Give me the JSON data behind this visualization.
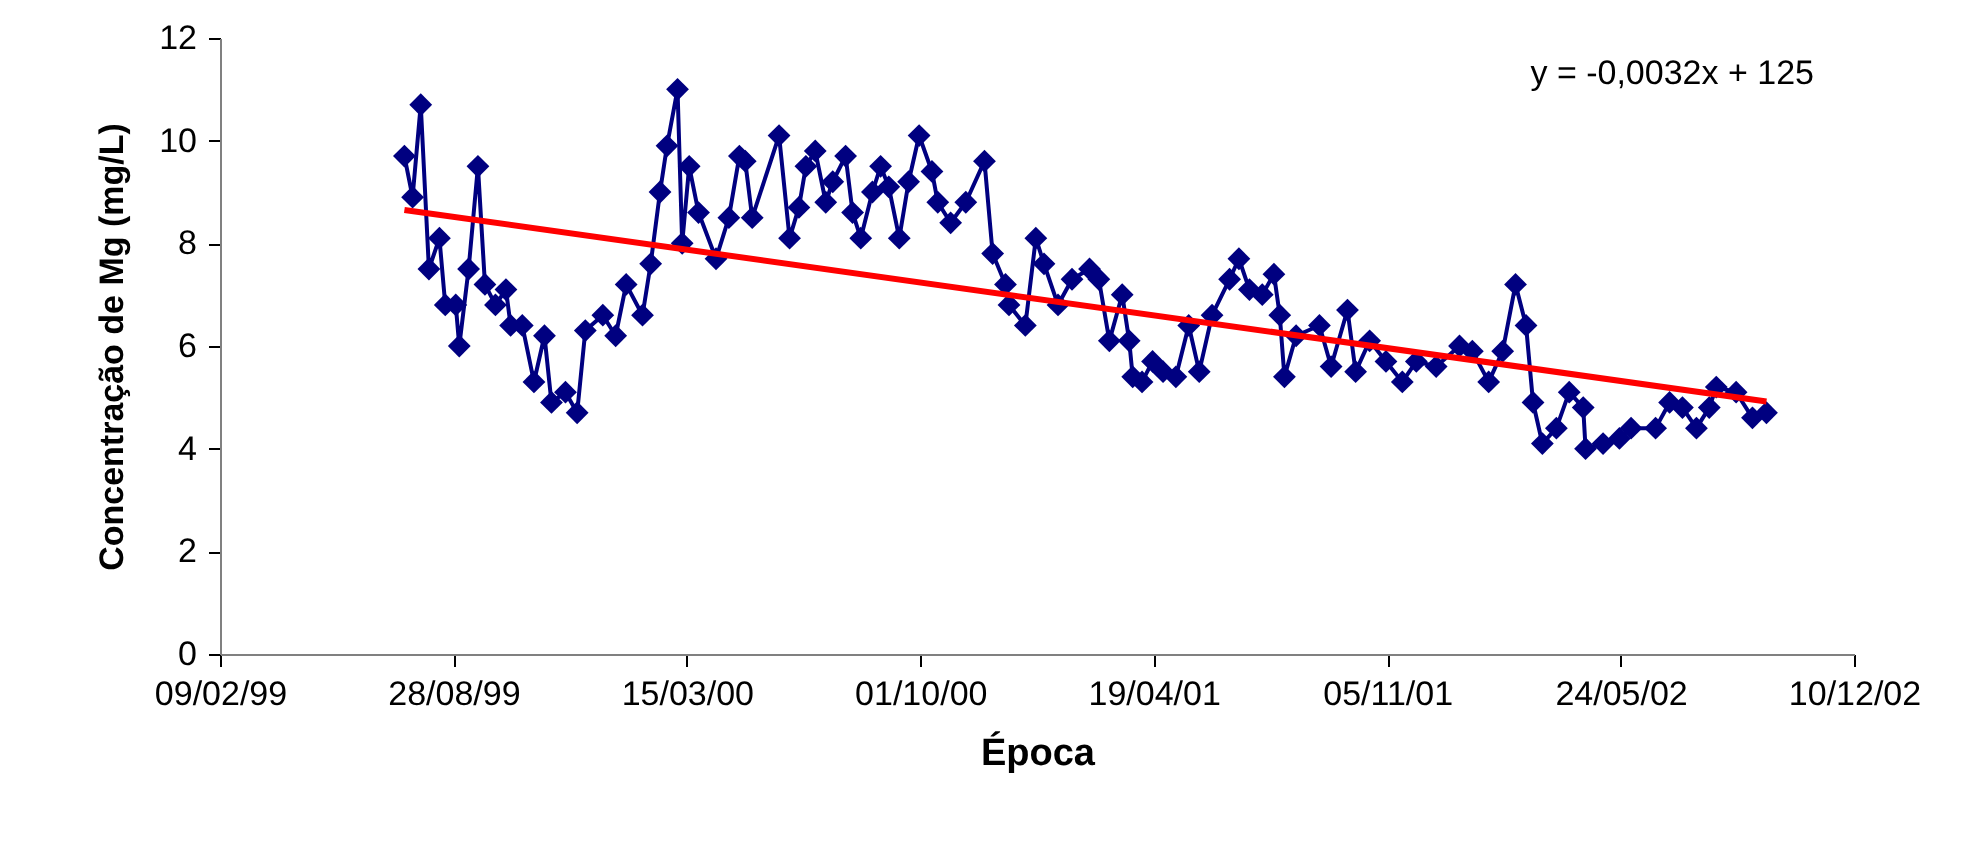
{
  "chart_data": {
    "type": "line",
    "xlabel": "Época",
    "ylabel": "Concentração de Mg (mg/L)",
    "annotations": [
      "y = -0,0032x + 125"
    ],
    "xlim": [
      "1999-02-09",
      "2002-12-10"
    ],
    "xticks": [
      {
        "value": "1999-02-09",
        "label": "09/02/99"
      },
      {
        "value": "1999-08-28",
        "label": "28/08/99"
      },
      {
        "value": "2000-03-15",
        "label": "15/03/00"
      },
      {
        "value": "2000-10-01",
        "label": "01/10/00"
      },
      {
        "value": "2001-04-19",
        "label": "19/04/01"
      },
      {
        "value": "2001-11-05",
        "label": "05/11/01"
      },
      {
        "value": "2002-05-24",
        "label": "24/05/02"
      },
      {
        "value": "2002-12-10",
        "label": "10/12/02"
      }
    ],
    "ylim": [
      0,
      12
    ],
    "yticks": [
      0,
      2,
      4,
      6,
      8,
      10,
      12
    ],
    "grid": false,
    "series": [
      {
        "color": "#000080",
        "marker": "diamond",
        "x": [
          "1999-07-17",
          "1999-07-24",
          "1999-07-31",
          "1999-08-07",
          "1999-08-16",
          "1999-08-21",
          "1999-08-30",
          "1999-09-02",
          "1999-09-10",
          "1999-09-18",
          "1999-09-24",
          "1999-10-03",
          "1999-10-12",
          "1999-10-16",
          "1999-10-26",
          "1999-11-05",
          "1999-11-14",
          "1999-11-20",
          "1999-12-02",
          "1999-12-12",
          "1999-12-19",
          "2000-01-03",
          "2000-01-14",
          "2000-01-23",
          "2000-02-06",
          "2000-02-13",
          "2000-02-21",
          "2000-02-27",
          "2000-03-07",
          "2000-03-11",
          "2000-03-17",
          "2000-03-25",
          "2000-04-09",
          "2000-04-20",
          "2000-04-29",
          "2000-05-04",
          "2000-05-10",
          "2000-06-02",
          "2000-06-11",
          "2000-06-19",
          "2000-06-25",
          "2000-07-03",
          "2000-07-12",
          "2000-07-18",
          "2000-07-29",
          "2000-08-04",
          "2000-08-11",
          "2000-08-21",
          "2000-08-28",
          "2000-09-04",
          "2000-09-13",
          "2000-09-21",
          "2000-09-30",
          "2000-10-11",
          "2000-10-16",
          "2000-10-27",
          "2000-11-09",
          "2000-11-25",
          "2000-12-02",
          "2000-12-13",
          "2000-12-16",
          "2000-12-30",
          "2001-01-08",
          "2001-01-15",
          "2001-01-27",
          "2001-02-08",
          "2001-02-23",
          "2001-03-03",
          "2001-03-12",
          "2001-03-23",
          "2001-03-29",
          "2001-04-01",
          "2001-04-09",
          "2001-04-18",
          "2001-04-27",
          "2001-05-08",
          "2001-05-19",
          "2001-05-28",
          "2001-06-08",
          "2001-06-23",
          "2001-07-01",
          "2001-07-10",
          "2001-07-21",
          "2001-07-31",
          "2001-08-05",
          "2001-08-09",
          "2001-08-19",
          "2001-09-08",
          "2001-09-18",
          "2001-10-02",
          "2001-10-09",
          "2001-10-21",
          "2001-11-04",
          "2001-11-18",
          "2001-11-30",
          "2001-12-17",
          "2002-01-06",
          "2002-01-17",
          "2002-01-31",
          "2002-02-12",
          "2002-02-23",
          "2002-03-04",
          "2002-03-10",
          "2002-03-18",
          "2002-03-30",
          "2002-04-10",
          "2002-04-22",
          "2002-04-24",
          "2002-05-09",
          "2002-05-23",
          "2002-06-02",
          "2002-06-23",
          "2002-07-05",
          "2002-07-16",
          "2002-07-28",
          "2002-08-08",
          "2002-08-14",
          "2002-08-31",
          "2002-09-14",
          "2002-09-26"
        ],
        "values": [
          9.7,
          8.9,
          10.7,
          7.5,
          8.1,
          6.8,
          6.8,
          6.0,
          7.5,
          9.5,
          7.2,
          6.8,
          7.1,
          6.4,
          6.4,
          5.3,
          6.2,
          4.9,
          5.1,
          4.7,
          6.3,
          6.6,
          6.2,
          7.2,
          6.6,
          7.6,
          9.0,
          9.9,
          11.0,
          8.0,
          9.5,
          8.6,
          7.7,
          8.5,
          9.7,
          9.6,
          8.5,
          10.1,
          8.1,
          8.7,
          9.5,
          9.8,
          8.8,
          9.2,
          9.7,
          8.6,
          8.1,
          9.0,
          9.5,
          9.1,
          8.1,
          9.2,
          10.1,
          9.4,
          8.8,
          8.4,
          8.8,
          9.6,
          7.8,
          7.2,
          6.8,
          6.4,
          8.1,
          7.6,
          6.8,
          7.3,
          7.5,
          7.3,
          6.1,
          7.0,
          6.1,
          5.4,
          5.3,
          5.7,
          5.5,
          5.4,
          6.4,
          5.5,
          6.6,
          7.3,
          7.7,
          7.1,
          7.0,
          7.4,
          6.6,
          5.4,
          6.2,
          6.4,
          5.6,
          6.7,
          5.5,
          6.1,
          5.7,
          5.3,
          5.7,
          5.6,
          6.0,
          5.9,
          5.3,
          5.9,
          7.2,
          6.4,
          4.9,
          4.1,
          4.4,
          5.1,
          4.8,
          4.0,
          4.1,
          4.2,
          4.4,
          4.4,
          4.9,
          4.8,
          4.4,
          4.8,
          5.2,
          5.1,
          4.6,
          4.7
        ]
      },
      {
        "type": "line",
        "color": "#ff0000",
        "marker": "none",
        "x": [
          "1999-07-17",
          "2002-09-26"
        ],
        "values": [
          8.65,
          4.92
        ]
      }
    ]
  }
}
